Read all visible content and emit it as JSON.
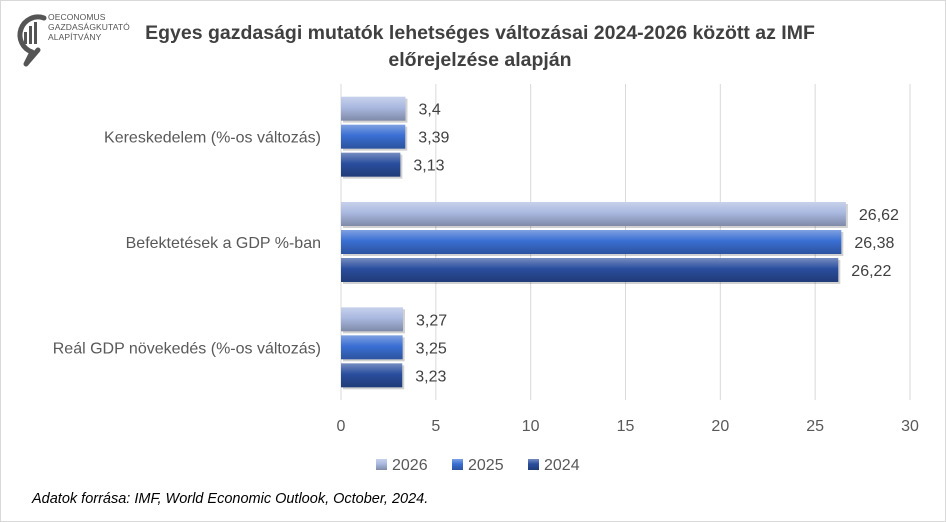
{
  "logo": {
    "lines": [
      "OECONOMUS",
      "GAZDASÁGKUTATÓ",
      "ALAPÍTVÁNY"
    ]
  },
  "footer": {
    "source": "Adatok forrása: IMF, World Economic Outlook, October, 2024."
  },
  "colors": {
    "2026": "#a9b8e0",
    "2025": "#3a6fd3",
    "2024": "#2a4e9e",
    "grid": "#d9d9d9"
  },
  "chart_data": {
    "type": "bar",
    "orientation": "horizontal",
    "title": "Egyes gazdasági mutatók lehetséges változásai 2024-2026 között az IMF előrejelzése alapján",
    "title_lines": [
      "Egyes gazdasági mutatók lehetséges változásai 2024-2026 között az IMF",
      "előrejelzése alapján"
    ],
    "categories": [
      "Kereskedelem (%-os változás)",
      "Befektetések a GDP %-ban",
      "Reál GDP növekedés (%-os változás)"
    ],
    "series": [
      {
        "name": "2026",
        "values": [
          3.4,
          26.62,
          3.27
        ],
        "labels": [
          "3,4",
          "26,62",
          "3,27"
        ]
      },
      {
        "name": "2025",
        "values": [
          3.39,
          26.38,
          3.25
        ],
        "labels": [
          "3,39",
          "26,38",
          "3,25"
        ]
      },
      {
        "name": "2024",
        "values": [
          3.13,
          26.22,
          3.23
        ],
        "labels": [
          "3,13",
          "26,22",
          "3,23"
        ]
      }
    ],
    "xlim": [
      0,
      30
    ],
    "xticks": [
      0,
      5,
      10,
      15,
      20,
      25,
      30
    ],
    "grid": true,
    "legend": "bottom"
  }
}
